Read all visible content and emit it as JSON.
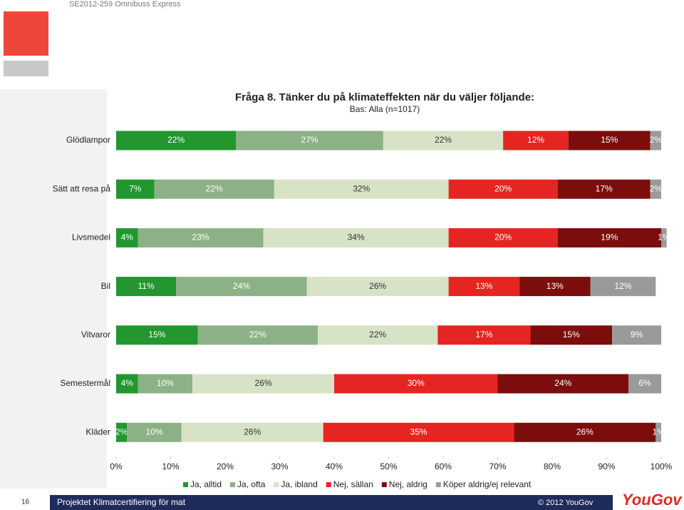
{
  "page": {
    "header": "SE2012-259 Omnibuss Express",
    "page_number": "16",
    "footer": "Projektet Klimatcertifiering för mat",
    "copyright": "© 2012 YouGov",
    "logo": "YouGov"
  },
  "chart_data": {
    "type": "stacked-bar-horizontal",
    "title": "Fråga 8. Tänker du på klimateffekten när du väljer följande:",
    "subtitle": "Bas: Alla (n=1017)",
    "categories": [
      "Glödlampor",
      "Sätt att resa på",
      "Livsmedel",
      "Bil",
      "Vitvaror",
      "Semestermål",
      "Kläder"
    ],
    "xlim": [
      0,
      100
    ],
    "xticks": [
      {
        "value": 0,
        "label": "0%"
      },
      {
        "value": 10,
        "label": "10%"
      },
      {
        "value": 20,
        "label": "20%"
      },
      {
        "value": 30,
        "label": "30%"
      },
      {
        "value": 40,
        "label": "40%"
      },
      {
        "value": 50,
        "label": "50%"
      },
      {
        "value": 60,
        "label": "60%"
      },
      {
        "value": 70,
        "label": "70%"
      },
      {
        "value": 80,
        "label": "80%"
      },
      {
        "value": 90,
        "label": "90%"
      },
      {
        "value": 100,
        "label": "100%"
      }
    ],
    "legend": "bottom",
    "series": [
      {
        "name": "Ja, alltid",
        "color": "#23962f",
        "values": [
          22,
          7,
          4,
          11,
          15,
          4,
          2
        ],
        "value_labels": [
          "22%",
          "7%",
          "4%",
          "11%",
          "15%",
          "4%",
          "2%"
        ]
      },
      {
        "name": "Ja, ofta",
        "color": "#8db187",
        "values": [
          27,
          22,
          23,
          24,
          22,
          10,
          10
        ],
        "value_labels": [
          "27%",
          "22%",
          "23%",
          "24%",
          "22%",
          "10%",
          "10%"
        ]
      },
      {
        "name": "Ja, ibland",
        "color": "#d8e2c6",
        "values": [
          22,
          32,
          34,
          26,
          22,
          26,
          26
        ],
        "value_labels": [
          "22%",
          "32%",
          "34%",
          "26%",
          "22%",
          "26%",
          "26%"
        ]
      },
      {
        "name": "Nej, sällan",
        "color": "#e52521",
        "values": [
          12,
          20,
          20,
          13,
          17,
          30,
          35
        ],
        "value_labels": [
          "12%",
          "20%",
          "20%",
          "13%",
          "17%",
          "30%",
          "35%"
        ]
      },
      {
        "name": "Nej, aldrig",
        "color": "#7c0d0d",
        "values": [
          15,
          17,
          19,
          13,
          15,
          24,
          26
        ],
        "value_labels": [
          "15%",
          "17%",
          "19%",
          "13%",
          "15%",
          "24%",
          "26%"
        ]
      },
      {
        "name": "Köper aldrig/ej relevant",
        "color": "#9a9a9a",
        "values": [
          2,
          2,
          1,
          12,
          9,
          6,
          1
        ],
        "value_labels": [
          "2%",
          "2%",
          "1%",
          "12%",
          "9%",
          "6%",
          "1%"
        ]
      }
    ]
  }
}
